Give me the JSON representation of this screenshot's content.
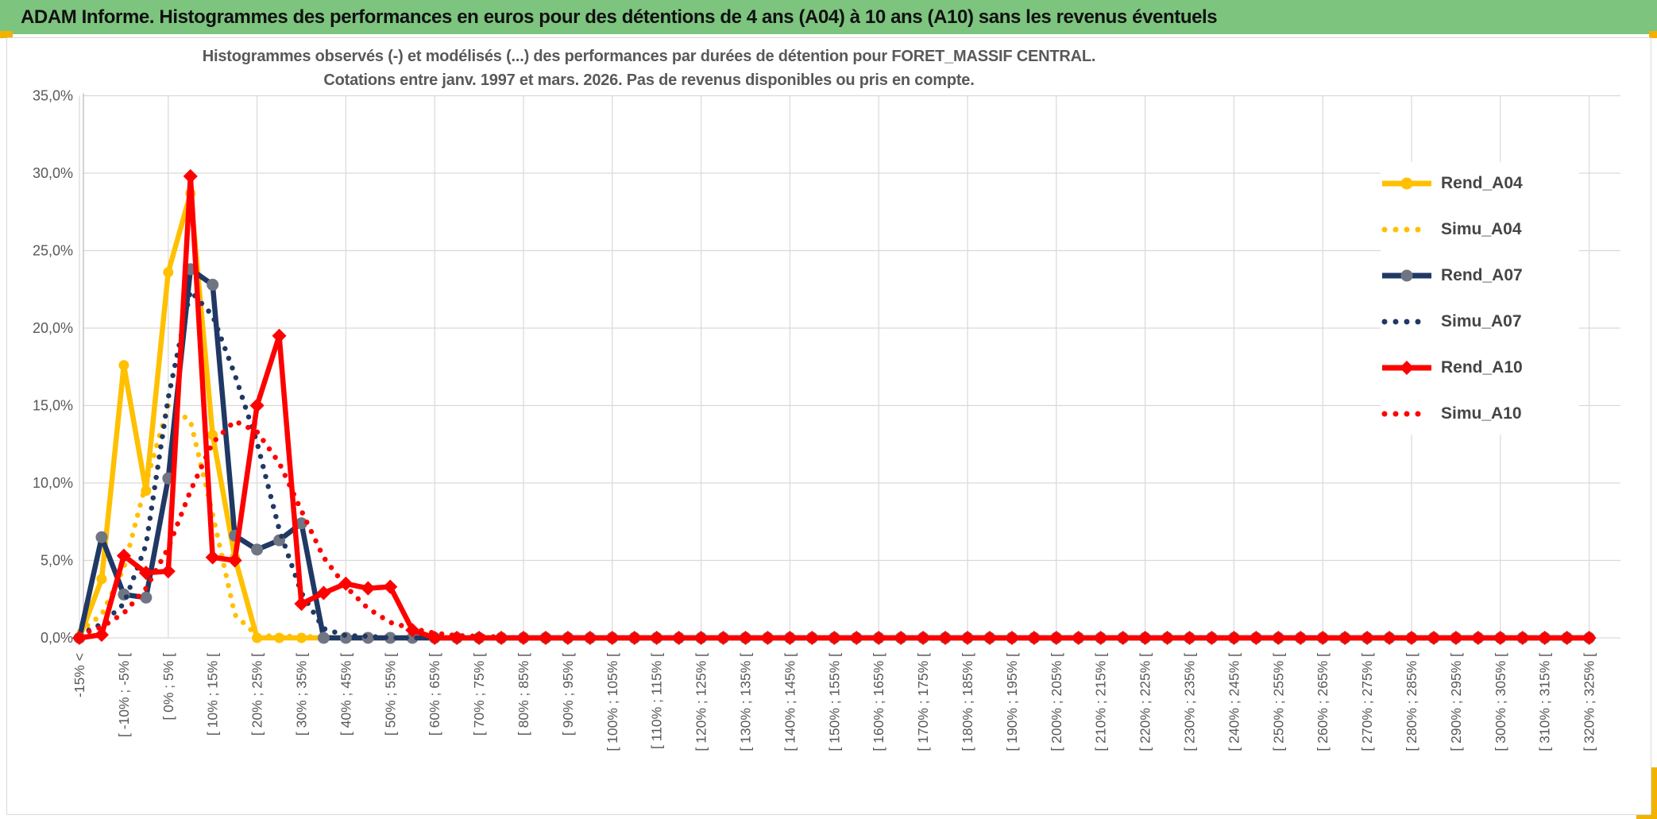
{
  "header": {
    "title": "ADAM Informe. Histogrammes des performances en euros pour des détentions de 4 ans (A04) à 10 ans (A10) sans les revenus éventuels"
  },
  "chart_data": {
    "type": "line",
    "title_line1": "Histogrammes observés (-) et modélisés (...) des performances par durées de détention pour FORET_MASSIF CENTRAL.",
    "title_line2": "Cotations entre janv. 1997 et mars. 2026. Pas de revenus disponibles ou pris en compte.",
    "ylabel": "",
    "xlabel": "",
    "ylim": [
      0,
      35
    ],
    "grid": true,
    "legend_position": "right",
    "y_tick_labels": [
      "0,0%",
      "5,0%",
      "10,0%",
      "15,0%",
      "20,0%",
      "25,0%",
      "30,0%",
      "35,0%"
    ],
    "x_tick_labels": [
      "-15% <",
      "[ -10% ; -5% [",
      "[ 0% ; 5% [",
      "[ 10% ; 15% [",
      "[ 20% ; 25% [",
      "[ 30% ; 35% [",
      "[ 40% ; 45% [",
      "[ 50% ; 55% [",
      "[ 60% ; 65% [",
      "[ 70% ; 75% [",
      "[ 80% ; 85% [",
      "[ 90% ; 95% [",
      "[ 100% ; 105% [",
      "[ 110% ; 115% [",
      "[ 120% ; 125% [",
      "[ 130% ; 135% [",
      "[ 140% ; 145% [",
      "[ 150% ; 155% [",
      "[ 160% ; 165% [",
      "[ 170% ; 175% [",
      "[ 180% ; 185% [",
      "[ 190% ; 195% [",
      "[ 200% ; 205% [",
      "[ 210% ; 215% [",
      "[ 220% ; 225% [",
      "[ 230% ; 235% [",
      "[ 240% ; 245% [",
      "[ 250% ; 255% [",
      "[ 260% ; 265% [",
      "[ 270% ; 275% [",
      "[ 280% ; 285% [",
      "[ 290% ; 295% [",
      "[ 300% ; 305% [",
      "[ 310% ; 315% [",
      "[ 320% ; 325% ["
    ],
    "bins_total": 69,
    "label_every_n_bins": 2,
    "series": [
      {
        "name": "Rend_A04",
        "color": "#FFC000",
        "style": "solid",
        "marker": "circle",
        "marker_color": "#FFC000",
        "values": [
          0,
          3.8,
          17.6,
          9.5,
          23.6,
          28.7,
          13.1,
          5.2
        ]
      },
      {
        "name": "Simu_A04",
        "color": "#FFC000",
        "style": "dotted",
        "values": [
          0.4,
          1.5,
          4.5,
          10,
          15,
          14,
          8,
          1.5,
          0.15,
          0.1,
          0.1,
          0.05
        ]
      },
      {
        "name": "Rend_A07",
        "color": "#203864",
        "style": "solid",
        "marker": "circle",
        "marker_color": "#6F7583",
        "values": [
          0,
          6.5,
          2.8,
          2.6,
          10.3,
          23.8,
          22.8,
          6.6,
          5.7,
          6.3,
          7.4
        ]
      },
      {
        "name": "Simu_A07",
        "color": "#203864",
        "style": "dotted",
        "values": [
          0.2,
          0.9,
          2.2,
          6,
          15.5,
          22.4,
          20.8,
          17,
          12.6,
          7,
          2.9,
          0.6,
          0.15,
          0.1
        ]
      },
      {
        "name": "Rend_A10",
        "color": "#FF0000",
        "style": "solid",
        "marker": "diamond",
        "marker_color": "#FF0000",
        "values": [
          0,
          0.2,
          5.3,
          4.2,
          4.3,
          29.8,
          5.2,
          5,
          15,
          19.5,
          2.2,
          2.9,
          3.5,
          3.2,
          3.3,
          0.5
        ]
      },
      {
        "name": "Simu_A10",
        "color": "#FF0000",
        "style": "dotted",
        "values": [
          0.2,
          0.7,
          1.6,
          3.2,
          5.8,
          9.5,
          12.6,
          14,
          13.3,
          11.3,
          8.2,
          5.2,
          3.3,
          1.9,
          1,
          0.6,
          0.3,
          0.15,
          0.1,
          0.05
        ]
      }
    ]
  },
  "colors": {
    "title_bar_green": "#7DC47F",
    "gold_accent": "#F2B200",
    "grid": "#D9D9D9",
    "axis": "#BFBFBF",
    "tick_text": "#595959",
    "title_text": "#595959",
    "legend_text": "#454545"
  }
}
